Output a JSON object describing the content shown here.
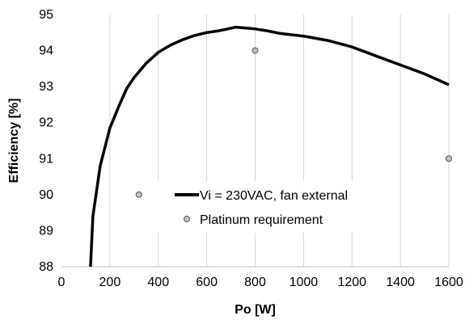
{
  "chart_data": {
    "type": "line",
    "title": "",
    "xlabel": "Po [W]",
    "ylabel": "Efficiency [%]",
    "xlim": [
      0,
      1600
    ],
    "ylim": [
      88,
      95
    ],
    "x_ticks": [
      0,
      200,
      400,
      600,
      800,
      1000,
      1200,
      1400,
      1600
    ],
    "y_ticks": [
      88,
      89,
      90,
      91,
      92,
      93,
      94,
      95
    ],
    "grid": "vertical",
    "legend_position": "center",
    "series": [
      {
        "name": "Vi = 230VAC, fan external",
        "type": "line",
        "color": "#000000",
        "points": [
          [
            120,
            88.0
          ],
          [
            130,
            89.4
          ],
          [
            160,
            90.8
          ],
          [
            200,
            91.85
          ],
          [
            240,
            92.5
          ],
          [
            270,
            92.95
          ],
          [
            300,
            93.25
          ],
          [
            350,
            93.65
          ],
          [
            400,
            93.95
          ],
          [
            450,
            94.15
          ],
          [
            500,
            94.3
          ],
          [
            550,
            94.42
          ],
          [
            600,
            94.5
          ],
          [
            650,
            94.55
          ],
          [
            700,
            94.62
          ],
          [
            720,
            94.65
          ],
          [
            800,
            94.6
          ],
          [
            850,
            94.55
          ],
          [
            900,
            94.48
          ],
          [
            1000,
            94.4
          ],
          [
            1100,
            94.28
          ],
          [
            1200,
            94.1
          ],
          [
            1300,
            93.85
          ],
          [
            1400,
            93.6
          ],
          [
            1500,
            93.35
          ],
          [
            1600,
            93.05
          ]
        ]
      },
      {
        "name": "Platinum requirement",
        "type": "scatter",
        "color": "#c0c0c0",
        "points": [
          [
            320,
            90.0
          ],
          [
            800,
            94.0
          ],
          [
            1600,
            91.0
          ]
        ]
      }
    ]
  }
}
